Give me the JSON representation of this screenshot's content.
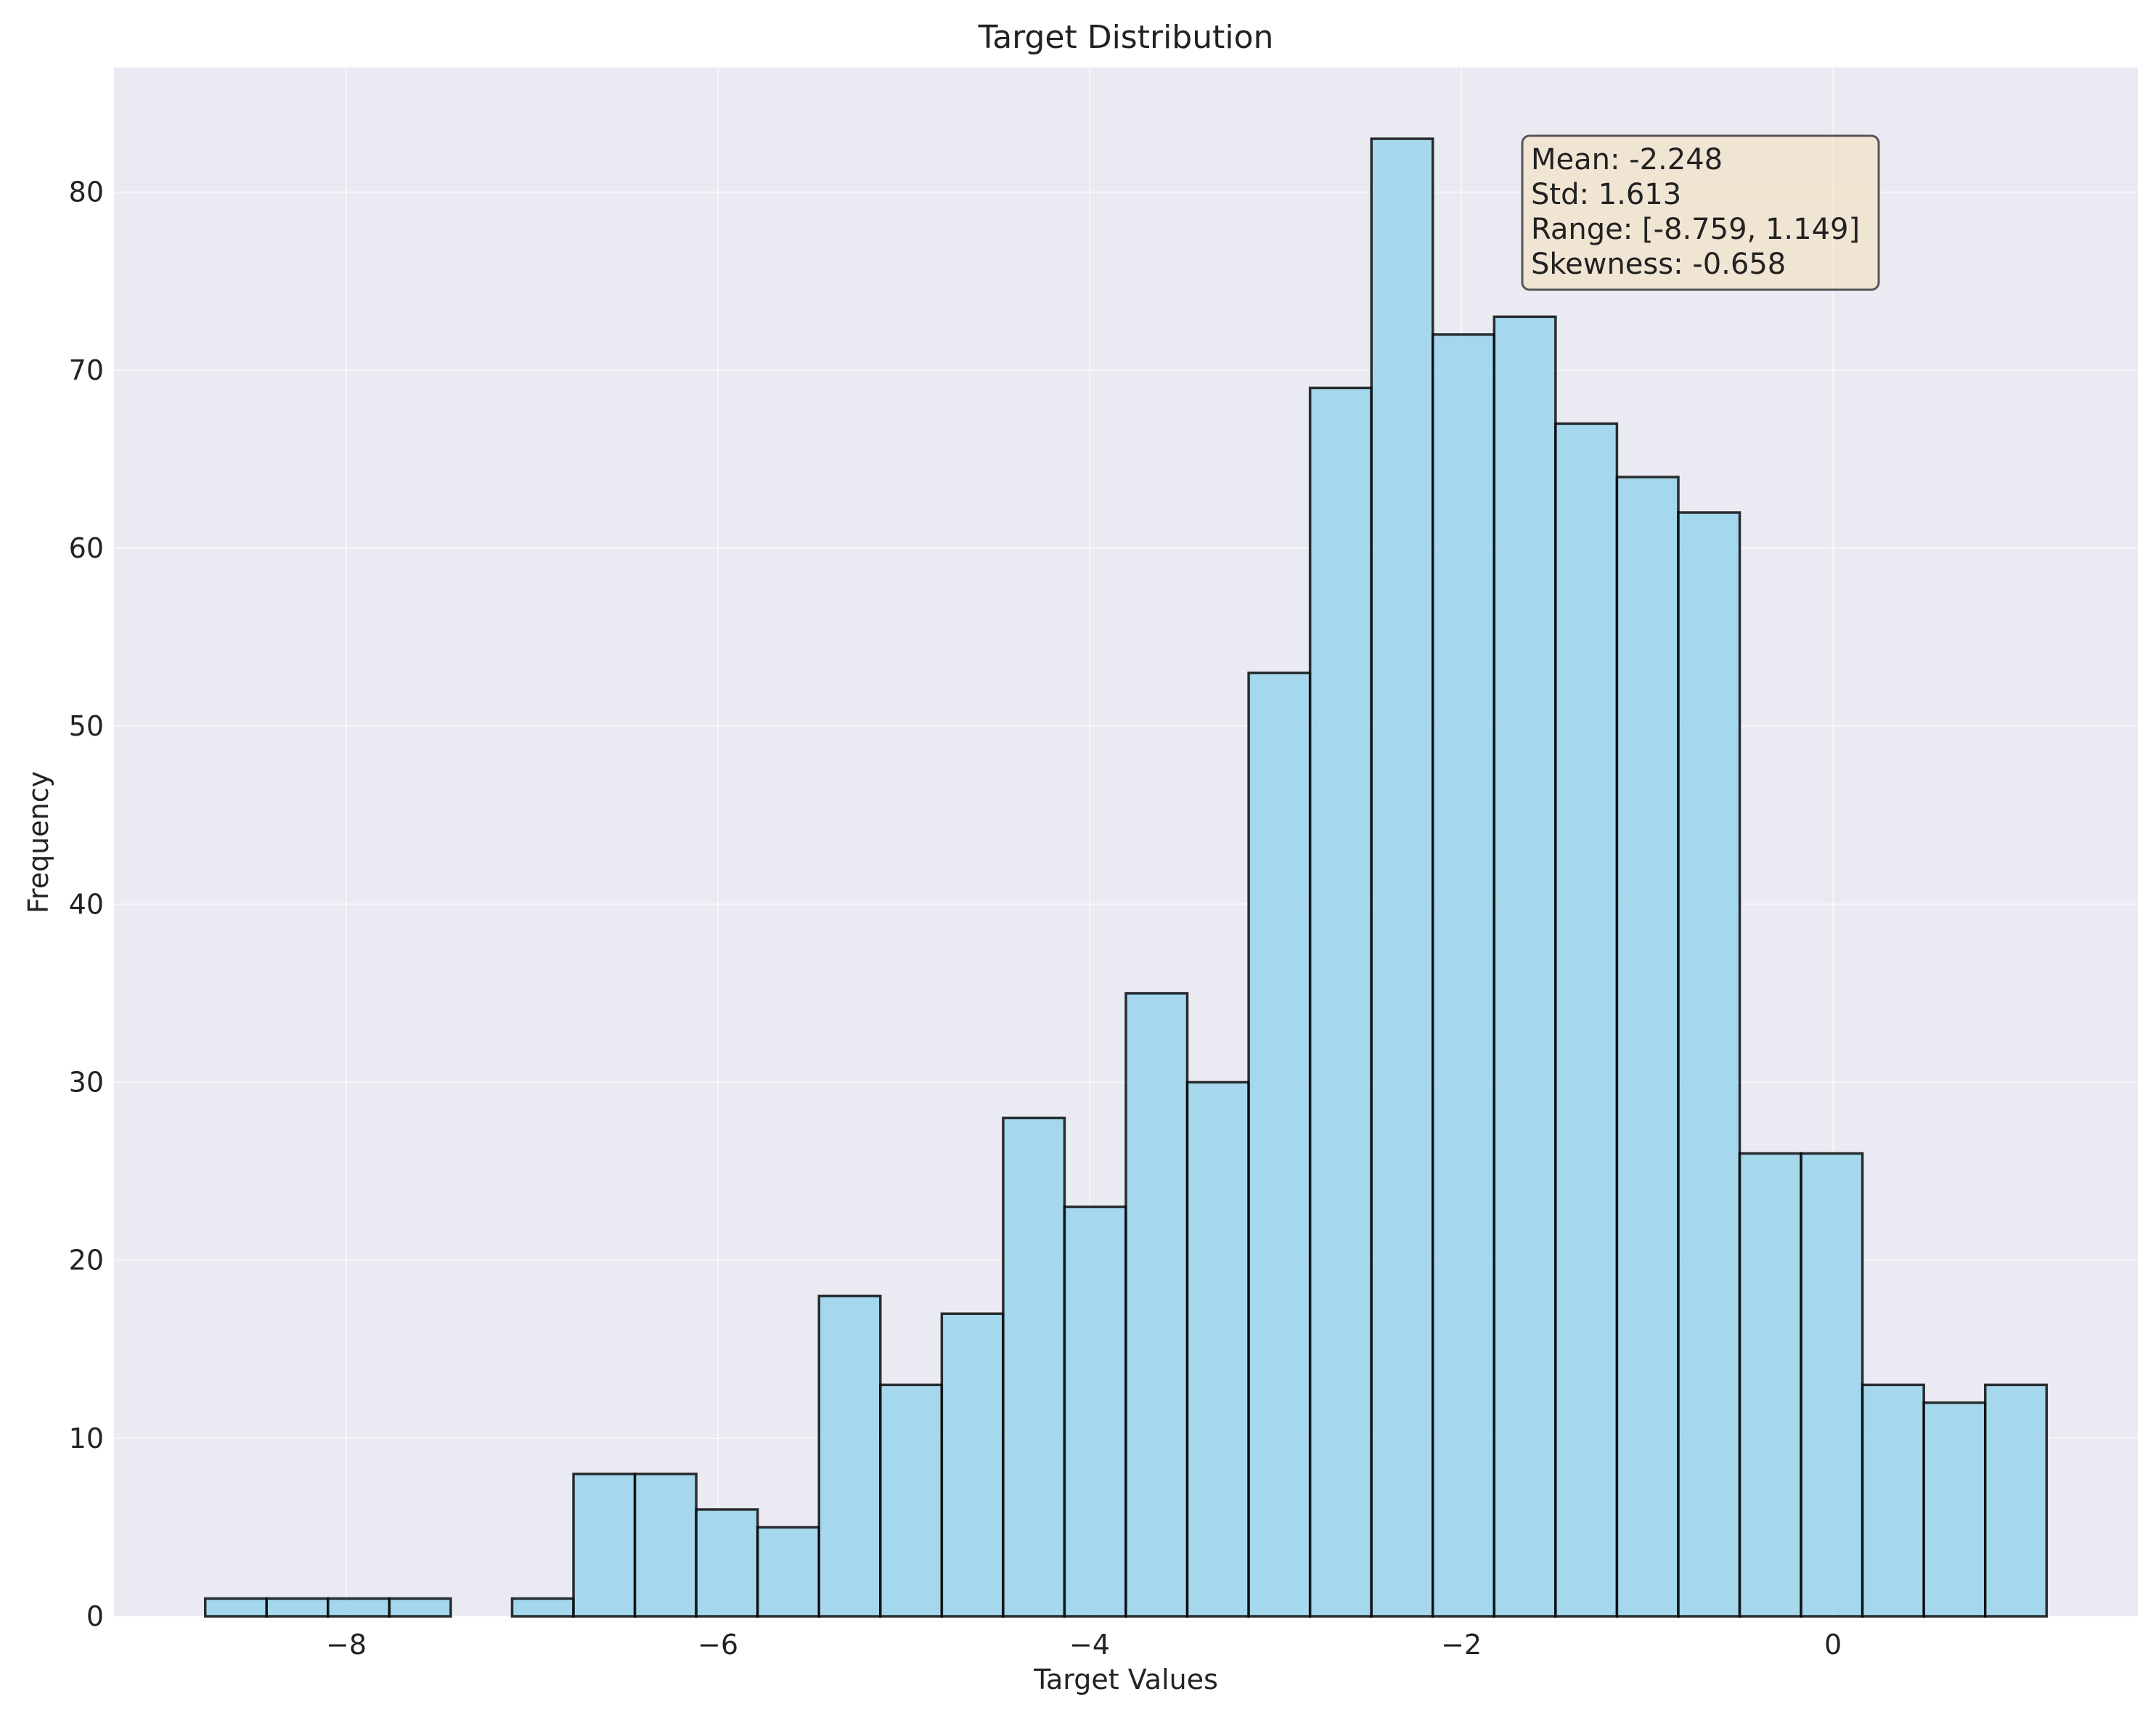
{
  "chart_data": {
    "type": "bar",
    "title": "Target Distribution",
    "xlabel": "Target Values",
    "ylabel": "Frequency",
    "xlim": [
      -9.25,
      1.64
    ],
    "ylim": [
      0,
      87
    ],
    "grid": true,
    "x_ticks": [
      -8,
      -6,
      -4,
      -2,
      0
    ],
    "x_tick_labels": [
      "−8",
      "−6",
      "−4",
      "−2",
      "0"
    ],
    "y_ticks": [
      0,
      10,
      20,
      30,
      40,
      50,
      60,
      70,
      80
    ],
    "y_tick_labels": [
      "0",
      "10",
      "20",
      "30",
      "40",
      "50",
      "60",
      "70",
      "80"
    ],
    "bins": {
      "start": -8.759,
      "end": 1.149,
      "count": 30
    },
    "counts": [
      1,
      1,
      1,
      1,
      0,
      1,
      8,
      8,
      6,
      5,
      18,
      13,
      17,
      28,
      23,
      35,
      30,
      53,
      69,
      83,
      72,
      73,
      67,
      64,
      62,
      26,
      26,
      13,
      12,
      13
    ],
    "annotation": {
      "placement": "top-right",
      "lines": [
        "Mean: -2.248",
        "Std: 1.613",
        "Range: [-8.759, 1.149]",
        "Skewness: -0.658"
      ]
    }
  }
}
